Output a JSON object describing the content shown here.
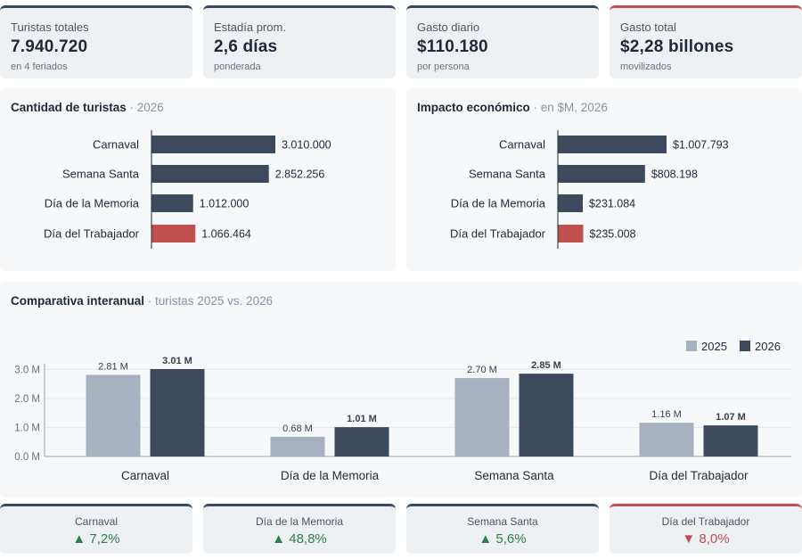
{
  "kpis": [
    {
      "label": "Turistas totales",
      "value": "7.940.720",
      "sub": "en 4 feriados",
      "accent": "#3d4a5e"
    },
    {
      "label": "Estadía prom.",
      "value": "2,6 días",
      "sub": "ponderada",
      "accent": "#3d4a5e"
    },
    {
      "label": "Gasto diario",
      "value": "$110.180",
      "sub": "por persona",
      "accent": "#3d4a5e"
    },
    {
      "label": "Gasto total",
      "value": "$2,28 billones",
      "sub": "movilizados",
      "accent": "#c0504d"
    }
  ],
  "colors": {
    "dark": "#3d4a5e",
    "light": "#a8b1bf",
    "highlight": "#c0504d",
    "up": "#2e7d4f",
    "down": "#c0504d"
  },
  "panels": {
    "tourists": {
      "title": "Cantidad de turistas",
      "subtitle": " · 2026"
    },
    "impact": {
      "title": "Impacto económico",
      "subtitle": " · en $M, 2026"
    },
    "compare": {
      "title": "Comparativa interanual",
      "subtitle": " · turistas 2025 vs. 2026"
    }
  },
  "changes": [
    {
      "name": "Carnaval",
      "value": "7,2%",
      "dir": "up",
      "arrow": "▲"
    },
    {
      "name": "Día de la Memoria",
      "value": "48,8%",
      "dir": "up",
      "arrow": "▲"
    },
    {
      "name": "Semana Santa",
      "value": "5,6%",
      "dir": "up",
      "arrow": "▲"
    },
    {
      "name": "Día del Trabajador",
      "value": "8,0%",
      "dir": "down",
      "arrow": "▼"
    }
  ],
  "chart_data": [
    {
      "type": "bar",
      "orientation": "horizontal",
      "title": "Cantidad de turistas",
      "subtitle": "2026",
      "categories": [
        "Carnaval",
        "Semana Santa",
        "Día de la Memoria",
        "Día del Trabajador"
      ],
      "values": [
        3010000,
        2852256,
        1012000,
        1066464
      ],
      "value_labels": [
        "3.010.000",
        "2.852.256",
        "1.012.000",
        "1.066.464"
      ],
      "highlight_index": 3
    },
    {
      "type": "bar",
      "orientation": "horizontal",
      "title": "Impacto económico",
      "subtitle": "en $M, 2026",
      "categories": [
        "Carnaval",
        "Semana Santa",
        "Día de la Memoria",
        "Día del Trabajador"
      ],
      "values": [
        1007793,
        808198,
        231084,
        235008
      ],
      "value_labels": [
        "$1.007.793",
        "$808.198",
        "$231.084",
        "$235.008"
      ],
      "highlight_index": 3
    },
    {
      "type": "bar",
      "orientation": "vertical",
      "title": "Comparativa interanual",
      "subtitle": "turistas 2025 vs. 2026",
      "categories": [
        "Carnaval",
        "Día de la Memoria",
        "Semana Santa",
        "Día del Trabajador"
      ],
      "series": [
        {
          "name": "2025",
          "values": [
            2.81,
            0.68,
            2.7,
            1.16
          ],
          "labels": [
            "2.81 M",
            "0.68 M",
            "2.70 M",
            "1.16 M"
          ],
          "color": "#a8b1bf"
        },
        {
          "name": "2026",
          "values": [
            3.01,
            1.01,
            2.85,
            1.07
          ],
          "labels": [
            "3.01 M",
            "1.01 M",
            "2.85 M",
            "1.07 M"
          ],
          "color": "#3d4a5e"
        }
      ],
      "yticks": [
        0,
        1,
        2,
        3
      ],
      "ytick_labels": [
        "0.0 M",
        "1.0 M",
        "2.0 M",
        "3.0 M"
      ],
      "ylim": [
        0,
        3.5
      ],
      "legend": "top-right",
      "grid": true
    }
  ]
}
